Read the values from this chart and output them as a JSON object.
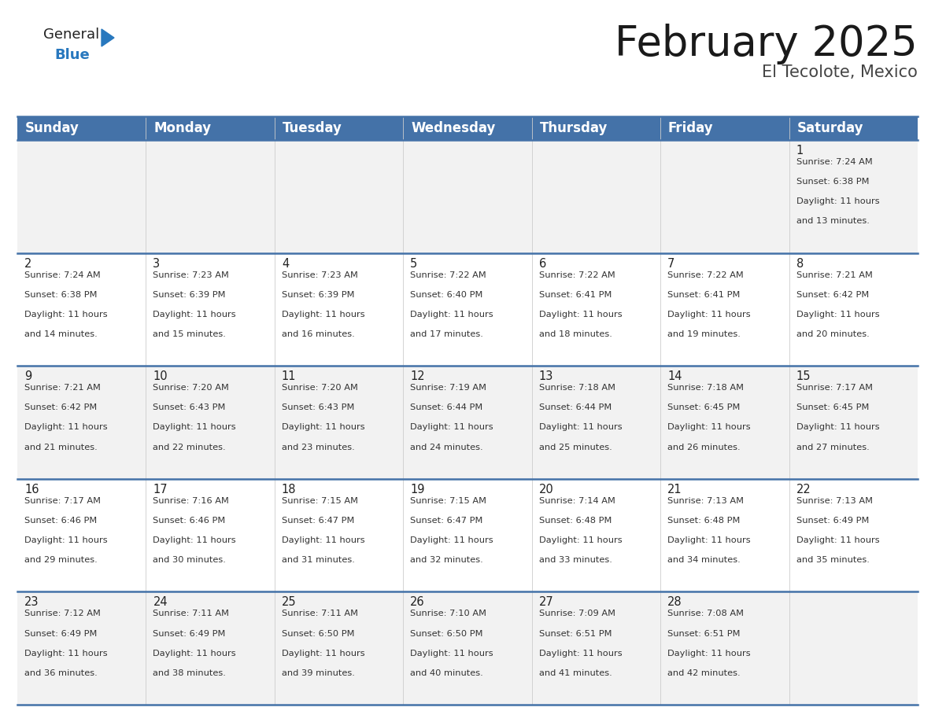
{
  "title": "February 2025",
  "subtitle": "El Tecolote, Mexico",
  "header_bg_color": "#4472a8",
  "header_text_color": "#ffffff",
  "cell_bg_row0": "#f2f2f2",
  "cell_bg_row1": "#ffffff",
  "cell_bg_row2": "#f2f2f2",
  "cell_bg_row3": "#ffffff",
  "cell_bg_row4": "#f2f2f2",
  "separator_color": "#4472a8",
  "grid_color": "#cccccc",
  "day_headers": [
    "Sunday",
    "Monday",
    "Tuesday",
    "Wednesday",
    "Thursday",
    "Friday",
    "Saturday"
  ],
  "title_fontsize": 38,
  "subtitle_fontsize": 15,
  "header_fontsize": 12,
  "day_num_fontsize": 10.5,
  "info_fontsize": 8.2,
  "logo_general_color": "#222222",
  "logo_blue_color": "#2878be",
  "calendar_data": [
    {
      "day": 1,
      "col": 6,
      "row": 0,
      "sunrise": "7:24 AM",
      "sunset": "6:38 PM",
      "daylight_hours": 11,
      "daylight_minutes": 13
    },
    {
      "day": 2,
      "col": 0,
      "row": 1,
      "sunrise": "7:24 AM",
      "sunset": "6:38 PM",
      "daylight_hours": 11,
      "daylight_minutes": 14
    },
    {
      "day": 3,
      "col": 1,
      "row": 1,
      "sunrise": "7:23 AM",
      "sunset": "6:39 PM",
      "daylight_hours": 11,
      "daylight_minutes": 15
    },
    {
      "day": 4,
      "col": 2,
      "row": 1,
      "sunrise": "7:23 AM",
      "sunset": "6:39 PM",
      "daylight_hours": 11,
      "daylight_minutes": 16
    },
    {
      "day": 5,
      "col": 3,
      "row": 1,
      "sunrise": "7:22 AM",
      "sunset": "6:40 PM",
      "daylight_hours": 11,
      "daylight_minutes": 17
    },
    {
      "day": 6,
      "col": 4,
      "row": 1,
      "sunrise": "7:22 AM",
      "sunset": "6:41 PM",
      "daylight_hours": 11,
      "daylight_minutes": 18
    },
    {
      "day": 7,
      "col": 5,
      "row": 1,
      "sunrise": "7:22 AM",
      "sunset": "6:41 PM",
      "daylight_hours": 11,
      "daylight_minutes": 19
    },
    {
      "day": 8,
      "col": 6,
      "row": 1,
      "sunrise": "7:21 AM",
      "sunset": "6:42 PM",
      "daylight_hours": 11,
      "daylight_minutes": 20
    },
    {
      "day": 9,
      "col": 0,
      "row": 2,
      "sunrise": "7:21 AM",
      "sunset": "6:42 PM",
      "daylight_hours": 11,
      "daylight_minutes": 21
    },
    {
      "day": 10,
      "col": 1,
      "row": 2,
      "sunrise": "7:20 AM",
      "sunset": "6:43 PM",
      "daylight_hours": 11,
      "daylight_minutes": 22
    },
    {
      "day": 11,
      "col": 2,
      "row": 2,
      "sunrise": "7:20 AM",
      "sunset": "6:43 PM",
      "daylight_hours": 11,
      "daylight_minutes": 23
    },
    {
      "day": 12,
      "col": 3,
      "row": 2,
      "sunrise": "7:19 AM",
      "sunset": "6:44 PM",
      "daylight_hours": 11,
      "daylight_minutes": 24
    },
    {
      "day": 13,
      "col": 4,
      "row": 2,
      "sunrise": "7:18 AM",
      "sunset": "6:44 PM",
      "daylight_hours": 11,
      "daylight_minutes": 25
    },
    {
      "day": 14,
      "col": 5,
      "row": 2,
      "sunrise": "7:18 AM",
      "sunset": "6:45 PM",
      "daylight_hours": 11,
      "daylight_minutes": 26
    },
    {
      "day": 15,
      "col": 6,
      "row": 2,
      "sunrise": "7:17 AM",
      "sunset": "6:45 PM",
      "daylight_hours": 11,
      "daylight_minutes": 27
    },
    {
      "day": 16,
      "col": 0,
      "row": 3,
      "sunrise": "7:17 AM",
      "sunset": "6:46 PM",
      "daylight_hours": 11,
      "daylight_minutes": 29
    },
    {
      "day": 17,
      "col": 1,
      "row": 3,
      "sunrise": "7:16 AM",
      "sunset": "6:46 PM",
      "daylight_hours": 11,
      "daylight_minutes": 30
    },
    {
      "day": 18,
      "col": 2,
      "row": 3,
      "sunrise": "7:15 AM",
      "sunset": "6:47 PM",
      "daylight_hours": 11,
      "daylight_minutes": 31
    },
    {
      "day": 19,
      "col": 3,
      "row": 3,
      "sunrise": "7:15 AM",
      "sunset": "6:47 PM",
      "daylight_hours": 11,
      "daylight_minutes": 32
    },
    {
      "day": 20,
      "col": 4,
      "row": 3,
      "sunrise": "7:14 AM",
      "sunset": "6:48 PM",
      "daylight_hours": 11,
      "daylight_minutes": 33
    },
    {
      "day": 21,
      "col": 5,
      "row": 3,
      "sunrise": "7:13 AM",
      "sunset": "6:48 PM",
      "daylight_hours": 11,
      "daylight_minutes": 34
    },
    {
      "day": 22,
      "col": 6,
      "row": 3,
      "sunrise": "7:13 AM",
      "sunset": "6:49 PM",
      "daylight_hours": 11,
      "daylight_minutes": 35
    },
    {
      "day": 23,
      "col": 0,
      "row": 4,
      "sunrise": "7:12 AM",
      "sunset": "6:49 PM",
      "daylight_hours": 11,
      "daylight_minutes": 36
    },
    {
      "day": 24,
      "col": 1,
      "row": 4,
      "sunrise": "7:11 AM",
      "sunset": "6:49 PM",
      "daylight_hours": 11,
      "daylight_minutes": 38
    },
    {
      "day": 25,
      "col": 2,
      "row": 4,
      "sunrise": "7:11 AM",
      "sunset": "6:50 PM",
      "daylight_hours": 11,
      "daylight_minutes": 39
    },
    {
      "day": 26,
      "col": 3,
      "row": 4,
      "sunrise": "7:10 AM",
      "sunset": "6:50 PM",
      "daylight_hours": 11,
      "daylight_minutes": 40
    },
    {
      "day": 27,
      "col": 4,
      "row": 4,
      "sunrise": "7:09 AM",
      "sunset": "6:51 PM",
      "daylight_hours": 11,
      "daylight_minutes": 41
    },
    {
      "day": 28,
      "col": 5,
      "row": 4,
      "sunrise": "7:08 AM",
      "sunset": "6:51 PM",
      "daylight_hours": 11,
      "daylight_minutes": 42
    }
  ]
}
